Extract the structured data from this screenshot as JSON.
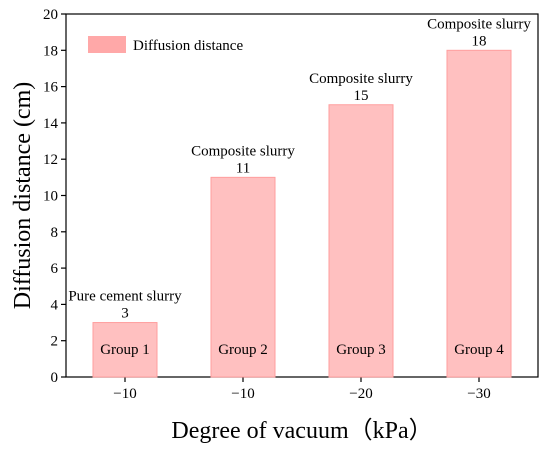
{
  "chart_data": {
    "type": "bar",
    "categories": [
      "−10",
      "−10",
      "−20",
      "−30"
    ],
    "series": [
      {
        "name": "Diffusion distance",
        "values": [
          3,
          11,
          15,
          18
        ]
      }
    ],
    "bar_top_labels": [
      "Pure cement slurry",
      "Composite slurry",
      "Composite slurry",
      "Composite slurry"
    ],
    "bar_inner_labels": [
      "Group 1",
      "Group 2",
      "Group 3",
      "Group 4"
    ],
    "xlabel": "Degree of vacuum（kPa）",
    "ylabel": "Diffusion distance (cm)",
    "ylim": [
      0,
      20
    ],
    "yticks": [
      0,
      2,
      4,
      6,
      8,
      10,
      12,
      14,
      16,
      18,
      20
    ],
    "grid": false,
    "legend_position": "top-left",
    "colors": {
      "bar_fill": "#ffc0c0",
      "bar_stroke": "#ff9e9e",
      "legend_swatch": "#ffa8a8",
      "axis": "#000000"
    }
  }
}
